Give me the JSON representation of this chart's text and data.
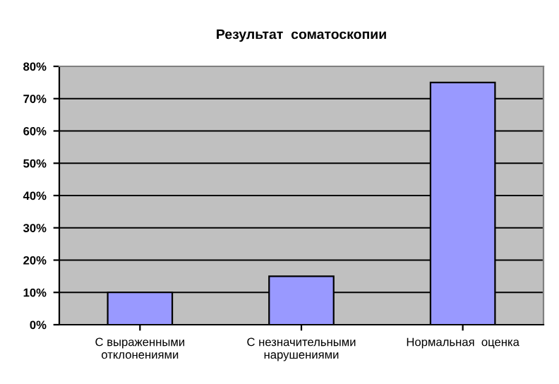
{
  "chart_data": {
    "type": "bar",
    "title": "Результат  соматоскопии",
    "categories": [
      "С выраженными\nотклонениями",
      "С незначительными\nнарушениями",
      "Нормальная  оценка"
    ],
    "values": [
      10,
      15,
      75
    ],
    "color": "#9999ff",
    "ylim": [
      0,
      80
    ],
    "yticks": [
      {
        "value": 0,
        "label": "0%"
      },
      {
        "value": 10,
        "label": "10%"
      },
      {
        "value": 20,
        "label": "20%"
      },
      {
        "value": 30,
        "label": "30%"
      },
      {
        "value": 40,
        "label": "40%"
      },
      {
        "value": 50,
        "label": "50%"
      },
      {
        "value": 60,
        "label": "60%"
      },
      {
        "value": 70,
        "label": "70%"
      },
      {
        "value": 80,
        "label": "80%"
      }
    ],
    "grid": "y",
    "legend": false
  }
}
